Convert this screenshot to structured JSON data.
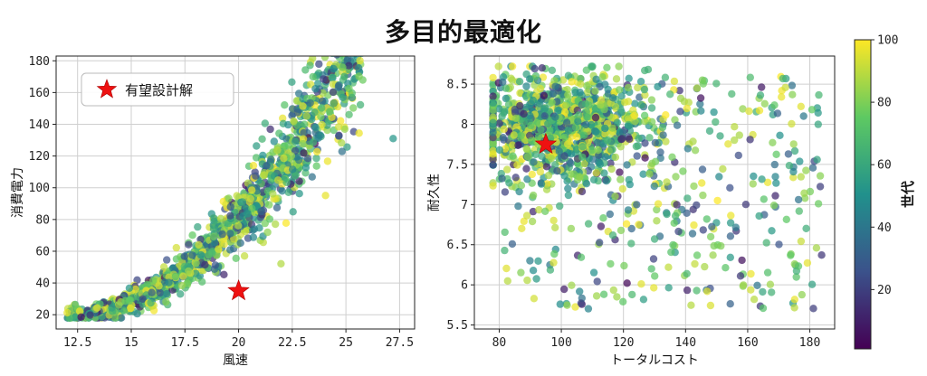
{
  "title": "多目的最適化",
  "chart_data": [
    {
      "type": "scatter",
      "xlabel": "風速",
      "ylabel": "消費電力",
      "xlim": [
        11.5,
        28.2
      ],
      "ylim": [
        11,
        183
      ],
      "xticks": [
        12.5,
        15.0,
        17.5,
        20.0,
        22.5,
        25.0,
        27.5
      ],
      "yticks": [
        20,
        40,
        60,
        80,
        100,
        120,
        140,
        160,
        180
      ],
      "grid": true,
      "legend": {
        "position": "top-left",
        "label": "有望設計解",
        "marker": "red-star"
      },
      "highlight": {
        "name": "有望設計解",
        "x": 20.0,
        "y": 35
      },
      "point_count": 1400,
      "trend": "consumption rises convexly with wind speed, approx y = 20 + 0.95*(x-12)^2"
    },
    {
      "type": "scatter",
      "xlabel": "トータルコスト",
      "ylabel": "耐久性",
      "xlim": [
        72,
        188
      ],
      "ylim": [
        5.45,
        8.85
      ],
      "xticks": [
        80,
        100,
        120,
        140,
        160,
        180
      ],
      "yticks": [
        5.5,
        6.0,
        6.5,
        7.0,
        7.5,
        8.0,
        8.5
      ],
      "grid": true,
      "highlight": {
        "name": "有望設計解",
        "x": 95,
        "y": 7.75
      },
      "point_count": 1400,
      "trend": "dense cluster at cost 85-140, durability 7.0-8.6; sparse tail down to 5.6"
    }
  ],
  "colorbar": {
    "label": "世代",
    "ticks": [
      20,
      40,
      60,
      80,
      100
    ],
    "range": [
      1,
      100
    ],
    "colormap": "viridis",
    "colors": [
      "#440154",
      "#3b528b",
      "#21918c",
      "#5ec962",
      "#fde725"
    ]
  },
  "marker_color": "#ee1111"
}
